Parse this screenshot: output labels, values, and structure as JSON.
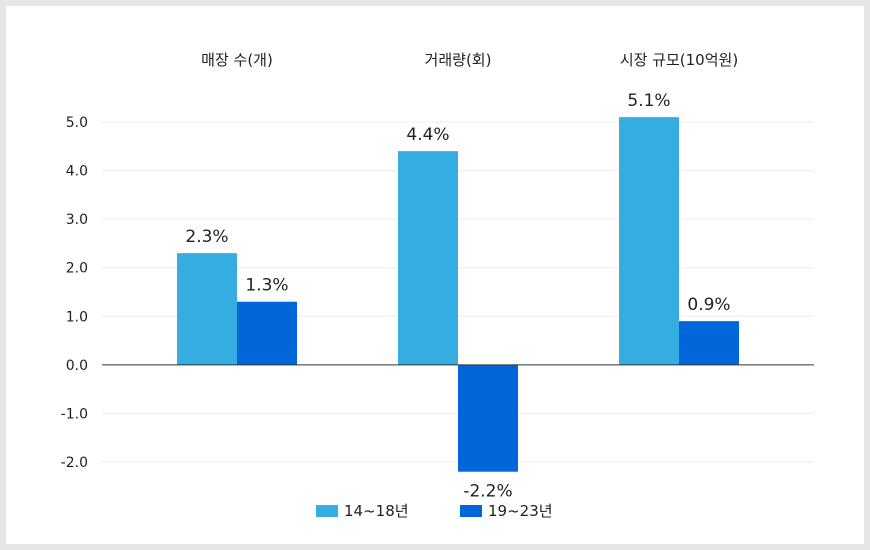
{
  "chart_data": {
    "type": "bar",
    "title": "",
    "xlabel": "",
    "ylabel": "",
    "categories": [
      "매장 수(개)",
      "거래량(회)",
      "시장 규모(10억원)"
    ],
    "series": [
      {
        "name": "14~18년",
        "values": [
          2.3,
          4.4,
          5.1
        ],
        "labels": [
          "2.3%",
          "4.4%",
          "5.1%"
        ],
        "color": "#36ade1"
      },
      {
        "name": "19~23년",
        "values": [
          1.3,
          -2.2,
          0.9
        ],
        "labels": [
          "1.3%",
          "-2.2%",
          "0.9%"
        ],
        "color": "#0066d9"
      }
    ],
    "ylim": [
      -2.0,
      5.0
    ],
    "yticks": [
      "5.0",
      "4.0",
      "3.0",
      "2.0",
      "1.0",
      "0.0",
      "-1.0",
      "-2.0"
    ],
    "ytick_values": [
      5,
      4,
      3,
      2,
      1,
      0,
      -1,
      -2
    ],
    "grid": true,
    "category_labels_position": "top",
    "legend_position": "bottom"
  }
}
